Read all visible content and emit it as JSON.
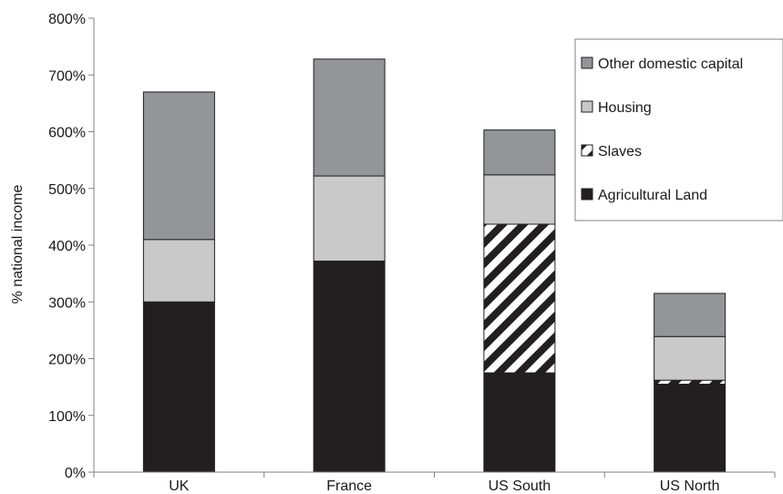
{
  "chart_data": {
    "type": "bar",
    "stacked": true,
    "title": "",
    "xlabel": "",
    "ylabel": "% national income",
    "ylim": [
      0,
      800
    ],
    "y_ticks": [
      "0%",
      "100%",
      "200%",
      "300%",
      "400%",
      "500%",
      "600%",
      "700%",
      "800%"
    ],
    "grid": false,
    "legend_position": "top-right",
    "categories": [
      "UK",
      "France",
      "US South",
      "US North"
    ],
    "series": [
      {
        "name": "Agricultural Land",
        "values": [
          300,
          372,
          175,
          155
        ],
        "fill": "#231f20",
        "pattern": "solid"
      },
      {
        "name": "Slaves",
        "values": [
          0,
          0,
          262,
          7
        ],
        "fill": "#231f20",
        "pattern": "hatch"
      },
      {
        "name": "Housing",
        "values": [
          110,
          150,
          87,
          77
        ],
        "fill": "#c9c9ca",
        "pattern": "solid"
      },
      {
        "name": "Other domestic capital",
        "values": [
          260,
          206,
          79,
          76
        ],
        "fill": "#939598",
        "pattern": "solid"
      }
    ],
    "legend_order": [
      "Other domestic capital",
      "Housing",
      "Slaves",
      "Agricultural Land"
    ]
  }
}
